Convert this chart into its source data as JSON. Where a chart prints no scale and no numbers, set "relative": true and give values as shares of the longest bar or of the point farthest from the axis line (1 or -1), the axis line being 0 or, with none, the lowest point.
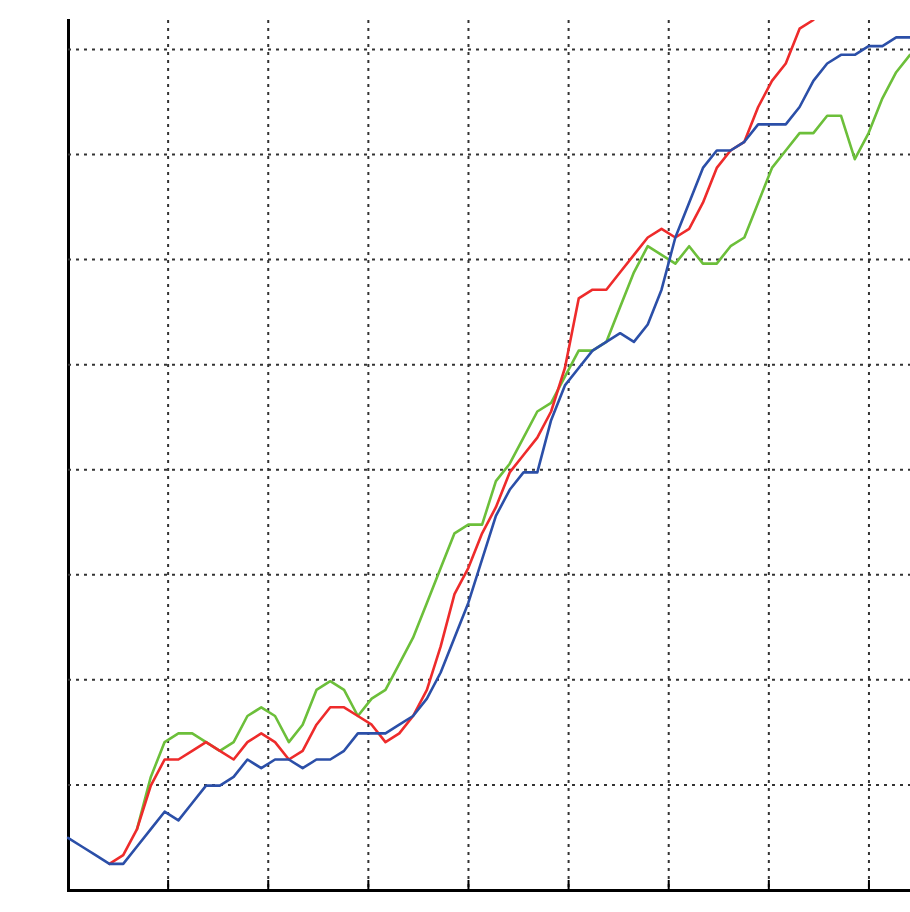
{
  "chart_data": {
    "type": "line",
    "relative": true,
    "grid": true,
    "legend": false,
    "marker": "none",
    "line_style": "solid",
    "categories": [
      null,
      null,
      null,
      null,
      null,
      null,
      null,
      null,
      null,
      null,
      null,
      null,
      null,
      null,
      null,
      null,
      null,
      null,
      null,
      null,
      null,
      null,
      null,
      null,
      null,
      null,
      null,
      null,
      null,
      null,
      null,
      null,
      null,
      null,
      null,
      null,
      null,
      null,
      null,
      null,
      null,
      null,
      null,
      null,
      null,
      null,
      null,
      null,
      null,
      null,
      null,
      null,
      null,
      null,
      null,
      null,
      null,
      null,
      null,
      null,
      null,
      null
    ],
    "series": [
      {
        "color": "#2b4fa8",
        "values": [
          0.06,
          0.05,
          0.04,
          0.03,
          0.03,
          0.05,
          0.07,
          0.09,
          0.08,
          0.1,
          0.12,
          0.12,
          0.13,
          0.15,
          0.14,
          0.15,
          0.15,
          0.14,
          0.15,
          0.15,
          0.16,
          0.18,
          0.18,
          0.18,
          0.19,
          0.2,
          0.22,
          0.25,
          0.29,
          0.33,
          0.38,
          0.43,
          0.46,
          0.48,
          0.48,
          0.54,
          0.58,
          0.6,
          0.62,
          0.63,
          0.64,
          0.63,
          0.65,
          0.69,
          0.75,
          0.79,
          0.83,
          0.85,
          0.85,
          0.86,
          0.88,
          0.88,
          0.88,
          0.9,
          0.93,
          0.95,
          0.96,
          0.96,
          0.97,
          0.97,
          0.98,
          0.98
        ]
      },
      {
        "color": "#ee2b2b",
        "values": [
          null,
          null,
          null,
          0.03,
          0.04,
          0.07,
          0.12,
          0.15,
          0.15,
          0.16,
          0.17,
          0.16,
          0.15,
          0.17,
          0.18,
          0.17,
          0.15,
          0.16,
          0.19,
          0.21,
          0.21,
          0.2,
          0.19,
          0.17,
          0.18,
          0.2,
          0.23,
          0.28,
          0.34,
          0.37,
          0.41,
          0.44,
          0.48,
          0.5,
          0.52,
          0.55,
          0.6,
          0.68,
          0.69,
          0.69,
          0.71,
          0.73,
          0.75,
          0.76,
          0.75,
          0.76,
          0.79,
          0.83,
          0.85,
          0.86,
          0.9,
          0.93,
          0.95,
          0.99,
          1.0,
          null,
          null,
          null,
          null,
          null,
          null,
          null
        ]
      },
      {
        "color": "#6cbf3a",
        "values": [
          null,
          null,
          null,
          null,
          null,
          0.07,
          0.13,
          0.17,
          0.18,
          0.18,
          0.17,
          0.16,
          0.17,
          0.2,
          0.21,
          0.2,
          0.17,
          0.19,
          0.23,
          0.24,
          0.23,
          0.2,
          0.22,
          0.23,
          0.26,
          0.29,
          0.33,
          0.37,
          0.41,
          0.42,
          0.42,
          0.47,
          0.49,
          0.52,
          0.55,
          0.56,
          0.59,
          0.62,
          0.62,
          0.63,
          0.67,
          0.71,
          0.74,
          0.73,
          0.72,
          0.74,
          0.72,
          0.72,
          0.74,
          0.75,
          0.79,
          0.83,
          0.85,
          0.87,
          0.87,
          0.89,
          0.89,
          0.84,
          0.87,
          0.91,
          0.94,
          0.96
        ]
      }
    ]
  }
}
